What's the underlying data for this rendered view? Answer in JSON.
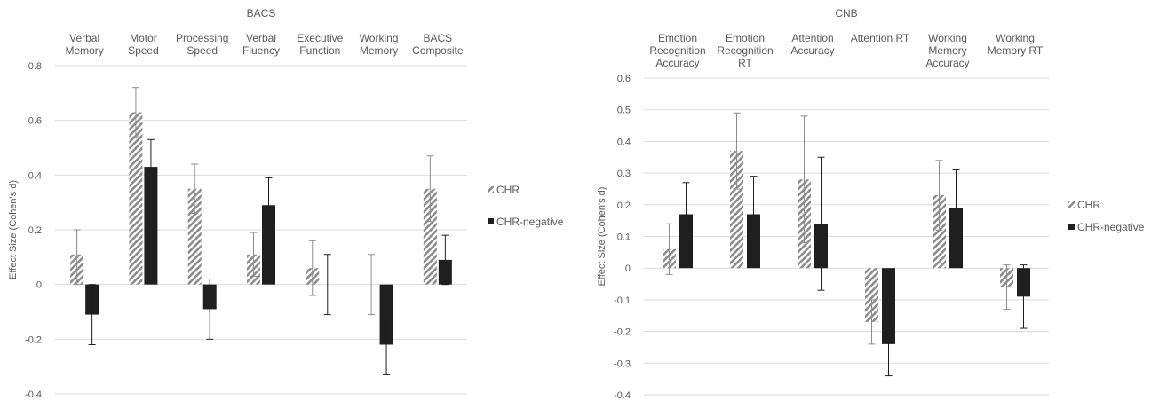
{
  "chart_data": [
    {
      "type": "bar",
      "title": "BACS",
      "ylabel": "Effect Size (Cohen's d)",
      "ylim": [
        -0.4,
        0.8
      ],
      "ytick_step": 0.2,
      "ytick_decimals": 1,
      "grid": true,
      "legend_position": "right",
      "categories": [
        [
          "Verbal",
          "Memory"
        ],
        [
          "Motor",
          "Speed"
        ],
        [
          "Processing",
          "Speed"
        ],
        [
          "Verbal",
          "Fluency"
        ],
        [
          "Executive",
          "Function"
        ],
        [
          "Working",
          "Memory"
        ],
        [
          "BACS",
          "Composite"
        ]
      ],
      "series": [
        {
          "name": "CHR",
          "style": "hatched",
          "values": [
            0.11,
            0.63,
            0.35,
            0.11,
            0.06,
            0.0,
            0.35
          ],
          "error_low": [
            0.0,
            0.54,
            0.26,
            0.03,
            -0.04,
            -0.11,
            0.23
          ],
          "error_high": [
            0.2,
            0.72,
            0.44,
            0.19,
            0.16,
            0.11,
            0.47
          ]
        },
        {
          "name": "CHR-negative",
          "style": "solid",
          "values": [
            -0.11,
            0.43,
            -0.09,
            0.29,
            0.0,
            -0.22,
            0.09
          ],
          "error_low": [
            -0.22,
            0.33,
            -0.2,
            0.19,
            -0.11,
            -0.33,
            0.0
          ],
          "error_high": [
            0.0,
            0.53,
            0.02,
            0.39,
            0.11,
            -0.11,
            0.18
          ]
        }
      ]
    },
    {
      "type": "bar",
      "title": "CNB",
      "ylabel": "Effect Size (Cohen's d)",
      "ylim": [
        -0.4,
        0.6
      ],
      "ytick_step": 0.1,
      "ytick_decimals": 1,
      "grid": true,
      "legend_position": "right",
      "categories": [
        [
          "Emotion",
          "Recognition",
          "Accuracy"
        ],
        [
          "Emotion",
          "Recognition",
          "RT"
        ],
        [
          "Attention",
          "Accuracy"
        ],
        [
          "Attention RT"
        ],
        [
          "Working",
          "Memory",
          "Accuracy"
        ],
        [
          "Working",
          "Memory RT"
        ]
      ],
      "series": [
        {
          "name": "CHR",
          "style": "hatched",
          "values": [
            0.06,
            0.37,
            0.28,
            -0.17,
            0.23,
            -0.06
          ],
          "error_low": [
            -0.02,
            0.25,
            0.08,
            -0.24,
            0.12,
            -0.13
          ],
          "error_high": [
            0.14,
            0.49,
            0.48,
            -0.1,
            0.34,
            0.01
          ]
        },
        {
          "name": "CHR-negative",
          "style": "solid",
          "values": [
            0.17,
            0.17,
            0.14,
            -0.24,
            0.19,
            -0.09
          ],
          "error_low": [
            0.07,
            0.05,
            -0.07,
            -0.34,
            0.07,
            -0.19
          ],
          "error_high": [
            0.27,
            0.29,
            0.35,
            -0.14,
            0.31,
            0.01
          ]
        }
      ]
    }
  ]
}
